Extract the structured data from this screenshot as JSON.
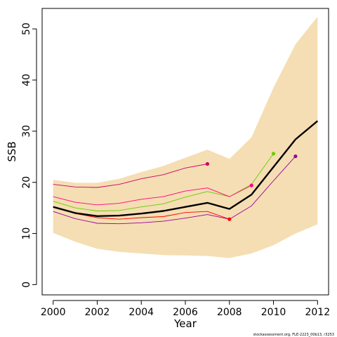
{
  "chart_data": {
    "type": "line",
    "title": "",
    "xlabel": "Year",
    "ylabel": "SSB",
    "xlim": [
      1999.5,
      2012.5
    ],
    "ylim": [
      -2,
      54
    ],
    "xticks": [
      2000,
      2002,
      2004,
      2006,
      2008,
      2010,
      2012
    ],
    "yticks": [
      0,
      10,
      20,
      30,
      40,
      50
    ],
    "grid": false,
    "legend": "none",
    "caption": "stockassessment.org, FLE-2223_00b13, r3253",
    "band": {
      "color": "#f5deb3",
      "x": [
        2000,
        2001,
        2002,
        2003,
        2004,
        2005,
        2006,
        2007,
        2008,
        2009,
        2010,
        2011,
        2012
      ],
      "upper": [
        20.5,
        19.9,
        19.9,
        20.7,
        22.0,
        23.2,
        24.8,
        26.4,
        24.6,
        28.8,
        38.5,
        47.0,
        52.4
      ],
      "lower": [
        10.1,
        8.4,
        7.0,
        6.4,
        6.1,
        5.8,
        5.7,
        5.6,
        5.2,
        6.1,
        7.7,
        10.0,
        11.8
      ]
    },
    "series": [
      {
        "color": "#000000",
        "width": 2.4,
        "x": [
          2000,
          2001,
          2002,
          2003,
          2004,
          2005,
          2006,
          2007,
          2008,
          2009,
          2010,
          2011,
          2012
        ],
        "values": [
          15.2,
          14.0,
          13.4,
          13.5,
          13.9,
          14.4,
          15.2,
          16.0,
          14.8,
          17.6,
          23.0,
          28.4,
          32.0
        ]
      },
      {
        "color": "#990099",
        "width": 0.9,
        "x": [
          2000,
          2001,
          2002,
          2003,
          2004,
          2005,
          2006,
          2007,
          2008,
          2009,
          2010,
          2011
        ],
        "values": [
          14.3,
          12.9,
          12.0,
          11.9,
          12.1,
          12.4,
          13.0,
          13.7,
          12.8,
          15.4,
          20.3,
          25.1
        ],
        "end_point": {
          "x": 2011,
          "y": 25.1
        }
      },
      {
        "color": "#66cc00",
        "width": 0.9,
        "x": [
          2000,
          2001,
          2002,
          2003,
          2004,
          2005,
          2006,
          2007,
          2008,
          2009,
          2010
        ],
        "values": [
          16.3,
          15.0,
          14.4,
          14.5,
          15.2,
          15.8,
          17.1,
          18.2,
          17.2,
          19.6,
          25.6
        ],
        "end_point": {
          "x": 2010,
          "y": 25.6
        }
      },
      {
        "color": "#ff0080",
        "width": 0.9,
        "x": [
          2000,
          2001,
          2002,
          2003,
          2004,
          2005,
          2006,
          2007,
          2008,
          2009
        ],
        "values": [
          17.2,
          16.1,
          15.6,
          15.9,
          16.7,
          17.2,
          18.3,
          18.9,
          17.2,
          19.4
        ],
        "end_point": {
          "x": 2009,
          "y": 19.4
        }
      },
      {
        "color": "#ff0000",
        "width": 0.9,
        "x": [
          2000,
          2001,
          2002,
          2003,
          2004,
          2005,
          2006,
          2007,
          2008
        ],
        "values": [
          15.2,
          13.9,
          13.1,
          12.8,
          13.1,
          13.3,
          14.1,
          14.3,
          12.8
        ],
        "end_point": {
          "x": 2008,
          "y": 12.8
        }
      },
      {
        "color": "#cc0066",
        "width": 0.9,
        "x": [
          2000,
          2001,
          2002,
          2003,
          2004,
          2005,
          2006,
          2007
        ],
        "values": [
          19.6,
          19.1,
          19.0,
          19.6,
          20.7,
          21.5,
          22.8,
          23.6
        ],
        "end_point": {
          "x": 2007,
          "y": 23.6
        }
      }
    ]
  }
}
